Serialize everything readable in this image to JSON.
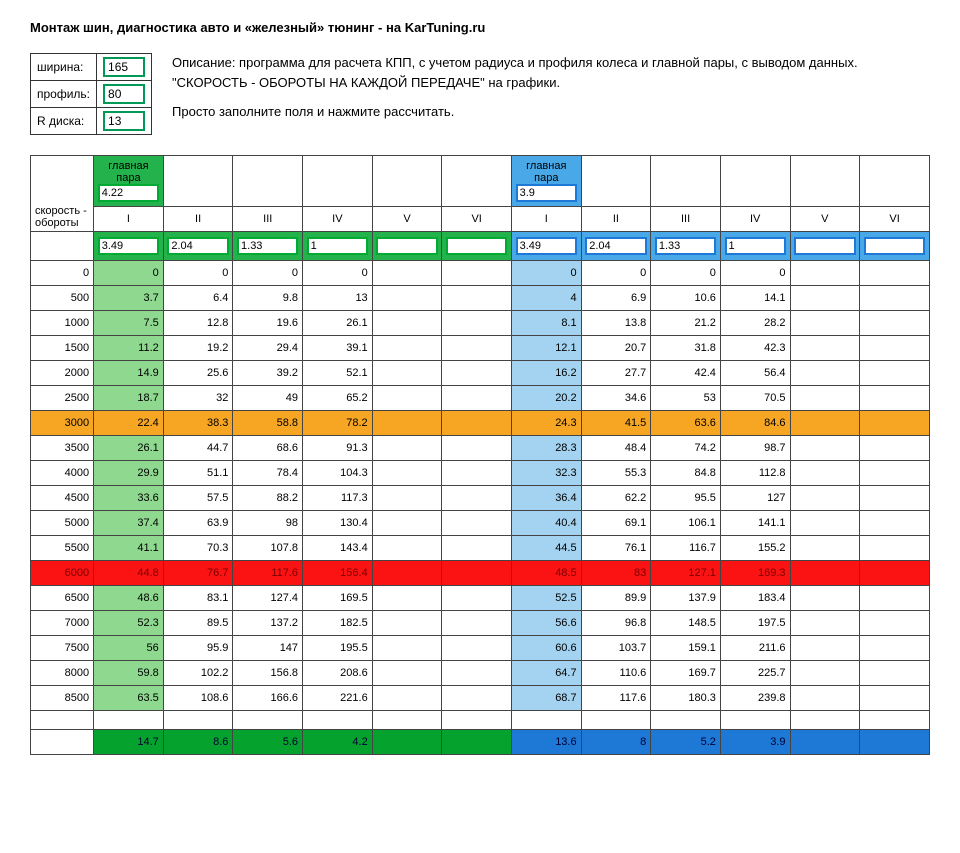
{
  "title": "Монтаж шин, диагностика авто и «железный» тюнинг - на KarTuning.ru",
  "params": {
    "width_label": "ширина:",
    "width_value": "165",
    "profile_label": "профиль:",
    "profile_value": "80",
    "disk_label": "R диска:",
    "disk_value": "13"
  },
  "desc_line1": "Описание: программа для расчета КПП, с учетом радиуса и профиля колеса и главной пары, с выводом данных. \"СКОРОСТЬ - ОБОРОТЫ НА КАЖДОЙ ПЕРЕДАЧЕ\" на графики.",
  "desc_line2": "Просто заполните поля и нажмите рассчитать.",
  "rowhead": "скорость - обороты",
  "pair_label": "главная пара",
  "pairA": "4.22",
  "pairB": "3.9",
  "gears_roman": [
    "I",
    "II",
    "III",
    "IV",
    "V",
    "VI"
  ],
  "gearsA": [
    "3.49",
    "2.04",
    "1.33",
    "1",
    "",
    ""
  ],
  "gearsB": [
    "3.49",
    "2.04",
    "1.33",
    "1",
    "",
    ""
  ],
  "rows": [
    {
      "rpm": "0",
      "A": [
        "0",
        "0",
        "0",
        "0",
        "",
        ""
      ],
      "B": [
        "0",
        "0",
        "0",
        "0",
        "",
        ""
      ],
      "cls": ""
    },
    {
      "rpm": "500",
      "A": [
        "3.7",
        "6.4",
        "9.8",
        "13",
        "",
        ""
      ],
      "B": [
        "4",
        "6.9",
        "10.6",
        "14.1",
        "",
        ""
      ],
      "cls": ""
    },
    {
      "rpm": "1000",
      "A": [
        "7.5",
        "12.8",
        "19.6",
        "26.1",
        "",
        ""
      ],
      "B": [
        "8.1",
        "13.8",
        "21.2",
        "28.2",
        "",
        ""
      ],
      "cls": ""
    },
    {
      "rpm": "1500",
      "A": [
        "11.2",
        "19.2",
        "29.4",
        "39.1",
        "",
        ""
      ],
      "B": [
        "12.1",
        "20.7",
        "31.8",
        "42.3",
        "",
        ""
      ],
      "cls": ""
    },
    {
      "rpm": "2000",
      "A": [
        "14.9",
        "25.6",
        "39.2",
        "52.1",
        "",
        ""
      ],
      "B": [
        "16.2",
        "27.7",
        "42.4",
        "56.4",
        "",
        ""
      ],
      "cls": ""
    },
    {
      "rpm": "2500",
      "A": [
        "18.7",
        "32",
        "49",
        "65.2",
        "",
        ""
      ],
      "B": [
        "20.2",
        "34.6",
        "53",
        "70.5",
        "",
        ""
      ],
      "cls": ""
    },
    {
      "rpm": "3000",
      "A": [
        "22.4",
        "38.3",
        "58.8",
        "78.2",
        "",
        ""
      ],
      "B": [
        "24.3",
        "41.5",
        "63.6",
        "84.6",
        "",
        ""
      ],
      "cls": "row-orange"
    },
    {
      "rpm": "3500",
      "A": [
        "26.1",
        "44.7",
        "68.6",
        "91.3",
        "",
        ""
      ],
      "B": [
        "28.3",
        "48.4",
        "74.2",
        "98.7",
        "",
        ""
      ],
      "cls": ""
    },
    {
      "rpm": "4000",
      "A": [
        "29.9",
        "51.1",
        "78.4",
        "104.3",
        "",
        ""
      ],
      "B": [
        "32.3",
        "55.3",
        "84.8",
        "112.8",
        "",
        ""
      ],
      "cls": ""
    },
    {
      "rpm": "4500",
      "A": [
        "33.6",
        "57.5",
        "88.2",
        "117.3",
        "",
        ""
      ],
      "B": [
        "36.4",
        "62.2",
        "95.5",
        "127",
        "",
        ""
      ],
      "cls": ""
    },
    {
      "rpm": "5000",
      "A": [
        "37.4",
        "63.9",
        "98",
        "130.4",
        "",
        ""
      ],
      "B": [
        "40.4",
        "69.1",
        "106.1",
        "141.1",
        "",
        ""
      ],
      "cls": ""
    },
    {
      "rpm": "5500",
      "A": [
        "41.1",
        "70.3",
        "107.8",
        "143.4",
        "",
        ""
      ],
      "B": [
        "44.5",
        "76.1",
        "116.7",
        "155.2",
        "",
        ""
      ],
      "cls": ""
    },
    {
      "rpm": "6000",
      "A": [
        "44.8",
        "76.7",
        "117.6",
        "156.4",
        "",
        ""
      ],
      "B": [
        "48.5",
        "83",
        "127.1",
        "169.3",
        "",
        ""
      ],
      "cls": "row-red"
    },
    {
      "rpm": "6500",
      "A": [
        "48.6",
        "83.1",
        "127.4",
        "169.5",
        "",
        ""
      ],
      "B": [
        "52.5",
        "89.9",
        "137.9",
        "183.4",
        "",
        ""
      ],
      "cls": ""
    },
    {
      "rpm": "7000",
      "A": [
        "52.3",
        "89.5",
        "137.2",
        "182.5",
        "",
        ""
      ],
      "B": [
        "56.6",
        "96.8",
        "148.5",
        "197.5",
        "",
        ""
      ],
      "cls": ""
    },
    {
      "rpm": "7500",
      "A": [
        "56",
        "95.9",
        "147",
        "195.5",
        "",
        ""
      ],
      "B": [
        "60.6",
        "103.7",
        "159.1",
        "211.6",
        "",
        ""
      ],
      "cls": ""
    },
    {
      "rpm": "8000",
      "A": [
        "59.8",
        "102.2",
        "156.8",
        "208.6",
        "",
        ""
      ],
      "B": [
        "64.7",
        "110.6",
        "169.7",
        "225.7",
        "",
        ""
      ],
      "cls": ""
    },
    {
      "rpm": "8500",
      "A": [
        "63.5",
        "108.6",
        "166.6",
        "221.6",
        "",
        ""
      ],
      "B": [
        "68.7",
        "117.6",
        "180.3",
        "239.8",
        "",
        ""
      ],
      "cls": ""
    }
  ],
  "footerA": [
    "14.7",
    "8.6",
    "5.6",
    "4.2",
    "",
    ""
  ],
  "footerB": [
    "13.6",
    "8",
    "5.2",
    "3.9",
    "",
    ""
  ]
}
